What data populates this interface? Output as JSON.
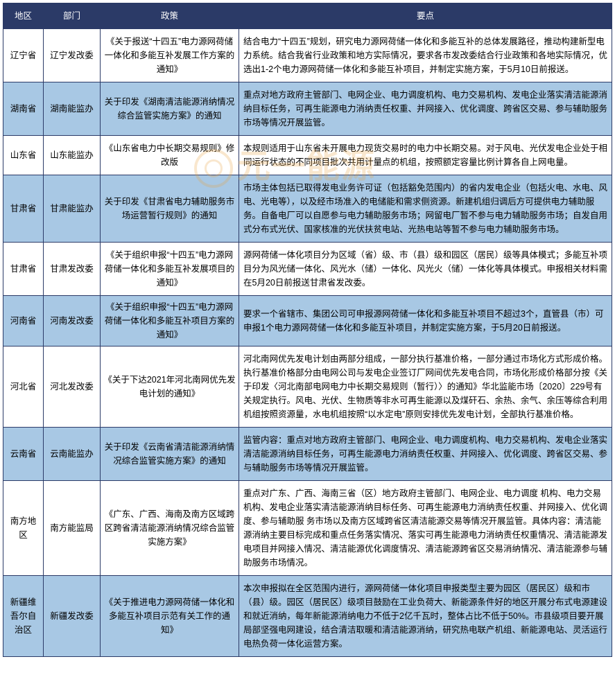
{
  "columns": [
    {
      "key": "region",
      "label": "地区",
      "class": "col-region"
    },
    {
      "key": "dept",
      "label": "部门",
      "class": "col-dept"
    },
    {
      "key": "policy",
      "label": "政策",
      "class": "col-policy"
    },
    {
      "key": "points",
      "label": "要点",
      "class": "col-points"
    }
  ],
  "header_bg": "#2b3a67",
  "header_fg": "#ffffff",
  "row_bg_odd": "#ffffff",
  "row_bg_even": "#a8c8e4",
  "border_color": "#2b3a67",
  "watermark_text": "元一能源",
  "rows": [
    {
      "region": "辽宁省",
      "dept": "辽宁发改委",
      "policy": "《关于报送“十四五”电力源网荷储一体化和多能互补发展工作方案的通知》",
      "points": "结合电力“十四五”规划，研究电力源网荷储一体化和多能互补的总体发展路径，推动构建新型电力系统。结合我省行业政策和地方实际情况，要求各市发改委结合行业政策和各地实际情况，优选出1-2个电力源网荷储一体化和多能互补项目，并制定实施方案，于5月10日前报送。"
    },
    {
      "region": "湖南省",
      "dept": "湖南能监办",
      "policy": "关于印发《湖南清洁能源消纳情况综合监管实施方案》的通知",
      "points": "重点对地方政府主管部门、电网企业、电力调度机构、电力交易机构、发电企业落实清洁能源消纳目标任务，可再生能源电力消纳责任权重、并网接入、优化调度、跨省区交易、参与辅助服务市场等情况开展监管。"
    },
    {
      "region": "山东省",
      "dept": "山东能监办",
      "policy": "《山东省电力中长期交易规则》修改版",
      "points": "本规则适用于山东省未开展电力现货交易时的电力中长期交易。对于风电、光伏发电企业处于相同运行状态的不同项目批次共用计量点的机组，按照额定容量比例计算各自上网电量。"
    },
    {
      "region": "甘肃省",
      "dept": "甘肃能监办",
      "policy": "关于印发《甘肃省电力辅助服务市场运营暂行规则》的通知",
      "points": "市场主体包括已取得发电业务许可证（包括豁免范围内）的省内发电企业（包括火电、水电、风电、光电等），以及经市场准入的电储能和需求侧资源。新建机组归调后方可提供电力辅助服务。自备电厂可以自愿参与电力辅助服务市场；网留电厂暂不参与电力辅助服务市场；自发自用式分布式光伏、国家核准的光伏扶贫电站、光热电站等暂不参与电力辅助服务市场。"
    },
    {
      "region": "甘肃省",
      "dept": "甘肃发改委",
      "policy": "《关于组织申报“十四五”电力源网荷储一体化和多能互补发展项目的通知》",
      "points": "源网荷储一体化项目分为区域（省）级、市（县）级和园区（居民）级等具体模式；多能互补项目分为风光储一体化、风光水（储）一体化、风光火（储）一体化等具体模式。申报相关材料需在5月20日前报送甘肃省发改委。"
    },
    {
      "region": "河南省",
      "dept": "河南发改委",
      "policy": "《关于组织申报“十四五”电力源网荷储一体化和多能互补项目方案的通知》",
      "points": "要求一个省辖市、集团公司可申报源网荷储一体化和多能互补项目不超过3个，直管县（市）可申报1个电力源网荷储一体化和多能互补项目，并制定实施方案，于5月20日前报送。"
    },
    {
      "region": "河北省",
      "dept": "河北发改委",
      "policy": "《关于下达2021年河北南网优先发电计划的通知》",
      "points": "河北南网优先发电计划由两部分组成，一部分执行基准价格，一部分通过市场化方式形成价格。执行基准价格部分由电网公司与发电企业签订厂网间优先发电合同，市场化形成价格部分按《关于印发〈河北南部电网电力中长期交易规则（暂行）〉的通知》华北监能市场〔2020〕229号有关规定执行。风电、光伏、生物质等非水可再生能源以及煤矸石、余热、余气、余压等综合利用机组按照资源量，水电机组按照“以水定电”原则安排优先发电计划，全部执行基准价格。"
    },
    {
      "region": "云南省",
      "dept": "云南能监办",
      "policy": "关于印发《云南省清洁能源消纳情况综合监管实施方案》的通知",
      "points": "监管内容：重点对地方政府主管部门、电网企业、电力调度机构、电力交易机构、发电企业落实清洁能源消纳目标任务，可再生能源电力消纳责任权重、并网接入、优化调度、跨省区交易、参与辅助服务市场等情况开展监管。"
    },
    {
      "region": "南方地区",
      "dept": "南方能监局",
      "policy": "《广东、广西、海南及南方区域跨区跨省清洁能源消纳情况综合监管实施方案》",
      "points": "重点对广东、广西、海南三省（区）地方政府主管部门、电网企业、电力调度 机构、电力交易机构、发电企业落实清洁能源消纳目标任务、可再生能源电力消纳责任权重、并网接入、优化调度、参与辅助服 务市场以及南方区域跨省区清洁能源交易等情况开展监管。具体内容：清洁能源消纳主要目标完成和重点任务落实情况、落实可再生能源电力消纳责任权重情况、清洁能源发电项目并网接入情况、清洁能源优化调度情况、清洁能源跨省区交易消纳情况、清洁能源参与辅助服务市场情况。"
    },
    {
      "region": "新疆维吾尔自治区",
      "dept": "新疆发改委",
      "policy": "《关于推进电力源网荷储一体化和多能互补项目示范有关工作的通知》",
      "points": "本次申报拟在全区范围内进行，源网荷储一体化项目申报类型主要为园区（居民区）级和市（县）级。园区（居民区）级项目鼓励在工业负荷大、新能源条件好的地区开展分布式电源建设和就近消纳，每年新能源消纳电力不低于2亿千瓦时，整体占比不低于50%。市县级项目要开展局部坚强电网建设，结合清洁取暖和清洁能源消纳，研究热电联产机组、新能源电站、灵活运行电热负荷一体化运营方案。"
    }
  ]
}
